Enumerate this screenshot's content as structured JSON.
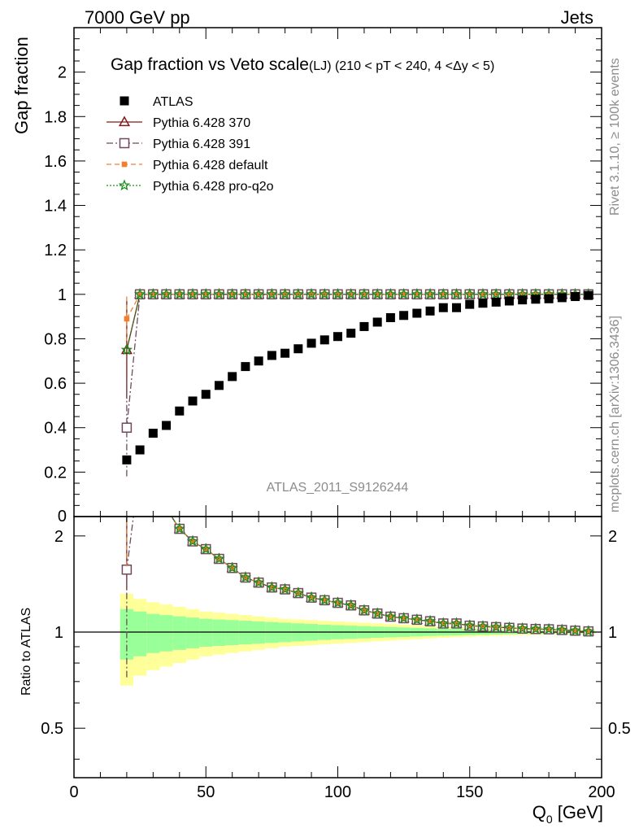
{
  "header": {
    "left": "7000 GeV pp",
    "right": "Jets"
  },
  "side_text": {
    "rivet": "Rivet 3.1.10, ≥ 100k events",
    "mcplots": "mcplots.cern.ch [arXiv:1306.3436]"
  },
  "chart_data": {
    "type": "scatter",
    "title": "Gap fraction vs Veto scale",
    "subtitle": "(LJ) (210 < pT < 240, 4 <Δy < 5)",
    "analysis_label": "ATLAS_2011_S9126244",
    "xlabel": "Q0 [GeV]",
    "xlabel_main": "Q",
    "xlabel_sub": "0",
    "xlabel_unit": " [GeV]",
    "ylabel": "Gap fraction",
    "ratio_ylabel": "Ratio to ATLAS",
    "xlim": [
      0,
      200
    ],
    "ylim": [
      0,
      2.2
    ],
    "ratio_ylim": [
      0.35,
      2.3
    ],
    "ratio_log": true,
    "x_ticks": [
      "0",
      "50",
      "100",
      "150",
      "200"
    ],
    "y_ticks": [
      "0.2",
      "0.4",
      "0.6",
      "0.8",
      "1",
      "1.2",
      "1.4",
      "1.6",
      "1.8",
      "2"
    ],
    "y_tick_zero": "0",
    "ratio_ticks": [
      "0.5",
      "1",
      "2"
    ],
    "legend_position": "top-left",
    "x": [
      20,
      25,
      30,
      35,
      40,
      45,
      50,
      55,
      60,
      65,
      70,
      75,
      80,
      85,
      90,
      95,
      100,
      105,
      110,
      115,
      120,
      125,
      130,
      135,
      140,
      145,
      150,
      155,
      160,
      165,
      170,
      175,
      180,
      185,
      190,
      195
    ],
    "series": [
      {
        "name": "ATLAS",
        "color": "#000000",
        "marker": "filled-square",
        "values": [
          0.255,
          0.3,
          0.375,
          0.41,
          0.475,
          0.52,
          0.55,
          0.59,
          0.63,
          0.675,
          0.7,
          0.725,
          0.735,
          0.755,
          0.78,
          0.795,
          0.81,
          0.825,
          0.855,
          0.875,
          0.895,
          0.905,
          0.915,
          0.925,
          0.94,
          0.94,
          0.955,
          0.96,
          0.965,
          0.97,
          0.975,
          0.978,
          0.98,
          0.985,
          0.99,
          0.995
        ],
        "rel_unc_inner": [
          0.18,
          0.16,
          0.14,
          0.13,
          0.12,
          0.11,
          0.1,
          0.095,
          0.09,
          0.085,
          0.08,
          0.075,
          0.07,
          0.065,
          0.06,
          0.055,
          0.05,
          0.047,
          0.044,
          0.04,
          0.037,
          0.034,
          0.031,
          0.028,
          0.025,
          0.023,
          0.021,
          0.019,
          0.017,
          0.015,
          0.014,
          0.013,
          0.012,
          0.011,
          0.01,
          0.01
        ],
        "rel_unc_outer": [
          0.32,
          0.27,
          0.24,
          0.22,
          0.2,
          0.18,
          0.16,
          0.15,
          0.14,
          0.13,
          0.12,
          0.11,
          0.1,
          0.095,
          0.09,
          0.085,
          0.08,
          0.075,
          0.07,
          0.065,
          0.06,
          0.055,
          0.05,
          0.045,
          0.04,
          0.036,
          0.033,
          0.03,
          0.027,
          0.024,
          0.022,
          0.02,
          0.018,
          0.016,
          0.015,
          0.014
        ]
      },
      {
        "name": "Pythia 6.428 370",
        "color": "#7f1a1a",
        "marker": "open-triangle",
        "line": "solid",
        "values": [
          0.75,
          1.0,
          1.0,
          1.0,
          1.0,
          1.0,
          1.0,
          1.0,
          1.0,
          1.0,
          1.0,
          1.0,
          1.0,
          1.0,
          1.0,
          1.0,
          1.0,
          1.0,
          1.0,
          1.0,
          1.0,
          1.0,
          1.0,
          1.0,
          1.0,
          1.0,
          1.0,
          1.0,
          1.0,
          1.0,
          1.0,
          1.0,
          1.0,
          1.0,
          1.0,
          1.0
        ],
        "err_first": 0.22
      },
      {
        "name": "Pythia 6.428 391",
        "color": "#6e4a5e",
        "marker": "open-square",
        "line": "dashdot",
        "values": [
          0.4,
          1.0,
          1.0,
          1.0,
          1.0,
          1.0,
          1.0,
          1.0,
          1.0,
          1.0,
          1.0,
          1.0,
          1.0,
          1.0,
          1.0,
          1.0,
          1.0,
          1.0,
          1.0,
          1.0,
          1.0,
          1.0,
          1.0,
          1.0,
          1.0,
          1.0,
          1.0,
          1.0,
          1.0,
          1.0,
          1.0,
          1.0,
          1.0,
          1.0,
          1.0,
          1.0
        ],
        "err_first": 0.22
      },
      {
        "name": "Pythia 6.428 default",
        "color": "#f08030",
        "marker": "filled-small-square",
        "line": "dashed",
        "values": [
          0.89,
          1.0,
          1.0,
          1.0,
          1.0,
          1.0,
          1.0,
          1.0,
          1.0,
          1.0,
          1.0,
          1.0,
          1.0,
          1.0,
          1.0,
          1.0,
          1.0,
          1.0,
          1.0,
          1.0,
          1.0,
          1.0,
          1.0,
          1.0,
          1.0,
          1.0,
          1.0,
          1.0,
          1.0,
          1.0,
          1.0,
          1.0,
          1.0,
          1.0,
          1.0,
          1.0
        ],
        "err_first": 0.1
      },
      {
        "name": "Pythia 6.428 pro-q2o",
        "color": "#1a8c1a",
        "marker": "open-star",
        "line": "dotted",
        "values": [
          0.75,
          1.0,
          1.0,
          1.0,
          1.0,
          1.0,
          1.0,
          1.0,
          1.0,
          1.0,
          1.0,
          1.0,
          1.0,
          1.0,
          1.0,
          1.0,
          1.0,
          1.0,
          1.0,
          1.0,
          1.0,
          1.0,
          1.0,
          1.0,
          1.0,
          1.0,
          1.0,
          1.0,
          1.0,
          1.0,
          1.0,
          1.0,
          1.0,
          1.0,
          1.0,
          1.0
        ],
        "err_first": 0.0
      }
    ]
  }
}
